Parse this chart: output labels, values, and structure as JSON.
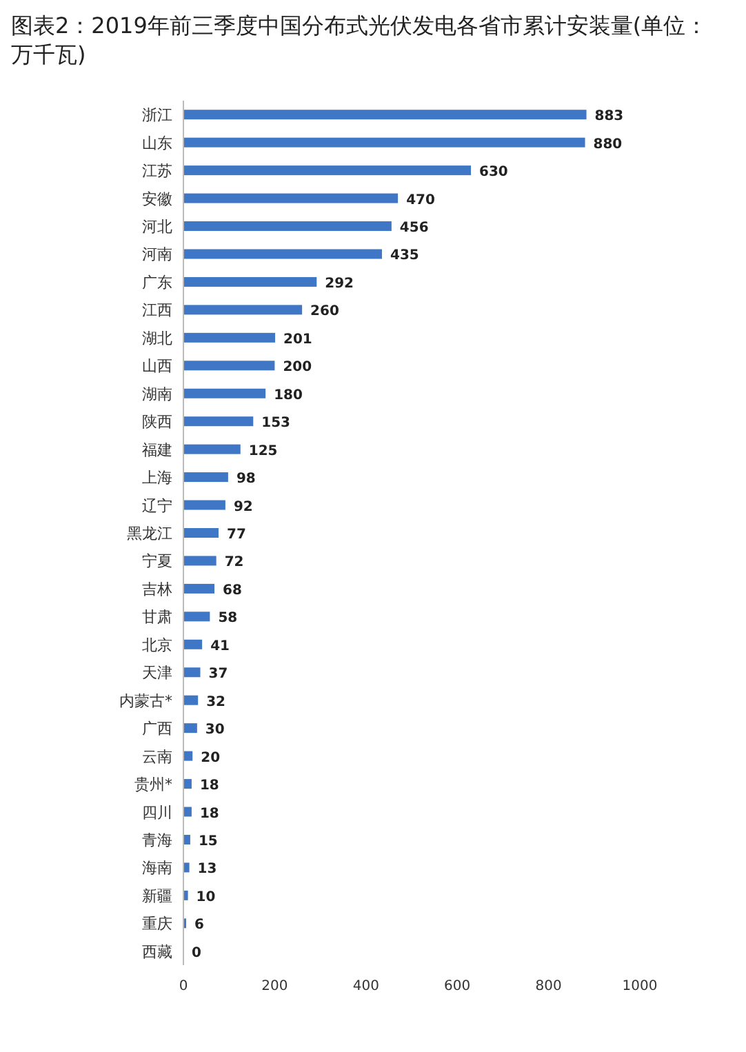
{
  "chart_data": {
    "type": "bar",
    "orientation": "horizontal",
    "title": "图表2：2019年前三季度中国分布式光伏发电各省市累计安装量(单位：万千瓦)",
    "categories": [
      "浙江",
      "山东",
      "江苏",
      "安徽",
      "河北",
      "河南",
      "广东",
      "江西",
      "湖北",
      "山西",
      "湖南",
      "陕西",
      "福建",
      "上海",
      "辽宁",
      "黑龙江",
      "宁夏",
      "吉林",
      "甘肃",
      "北京",
      "天津",
      "内蒙古*",
      "广西",
      "云南",
      "贵州*",
      "四川",
      "青海",
      "海南",
      "新疆",
      "重庆",
      "西藏"
    ],
    "values": [
      883,
      880,
      630,
      470,
      456,
      435,
      292,
      260,
      201,
      200,
      180,
      153,
      125,
      98,
      92,
      77,
      72,
      68,
      58,
      41,
      37,
      32,
      30,
      20,
      18,
      18,
      15,
      13,
      10,
      6,
      0
    ],
    "color": "#3f76c6",
    "xlim": [
      0,
      1000
    ],
    "xticks": [
      0,
      200,
      400,
      600,
      800,
      1000
    ],
    "data_labels": true
  }
}
